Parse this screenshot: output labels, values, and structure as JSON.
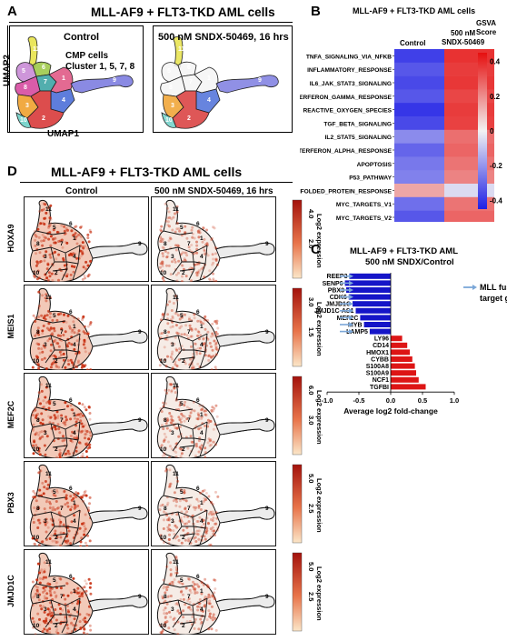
{
  "panel_a": {
    "letter": "A",
    "title": "MLL-AF9 + FLT3-TKD AML cells",
    "control_label": "Control",
    "treated_label": "500 nM SNDX-50469, 16 hrs",
    "cmp_label_1": "CMP cells",
    "cmp_label_2": "Cluster 1, 5, 7, 8",
    "ylabel": "UMAP2",
    "xlabel": "UMAP1"
  },
  "panel_b": {
    "letter": "B",
    "title": "MLL-AF9 + FLT3-TKD AML cells",
    "col1": "Control",
    "col2_line1": "500 nM",
    "col2_line2": "SNDX-50469",
    "scale_line1": "GSVA",
    "scale_line2": "Score"
  },
  "panel_c": {
    "letter": "C",
    "title_line1": "MLL-AF9 + FLT3-TKD AML",
    "title_line2": "500 nM SNDX/Control",
    "annotation_line1": "MLL fusion",
    "annotation_line2": "target gene"
  },
  "panel_d": {
    "letter": "D",
    "title": "MLL-AF9 + FLT3-TKD AML cells",
    "control_label": "Control",
    "treated_label": "500 nM SNDX-50469, 16 hrs",
    "colorbar_label": "Log2 expression",
    "rows": [
      {
        "gene": "HOXA9",
        "max": "4.0",
        "mid": "2.0"
      },
      {
        "gene": "MEIS1",
        "max": "3.0",
        "mid": "1.5"
      },
      {
        "gene": "MEF2C",
        "max": "6.0",
        "mid": "3.0"
      },
      {
        "gene": "PBX3",
        "max": "5.0",
        "mid": "2.5"
      },
      {
        "gene": "JMJD1C",
        "max": "5.0",
        "mid": "2.5"
      }
    ]
  },
  "chart_data": [
    {
      "type": "heatmap",
      "panel": "B",
      "title": "MLL-AF9 + FLT3-TKD AML cells",
      "columns": [
        "Control",
        "500 nM SNDX-50469"
      ],
      "rows": [
        "TNFA_SIGNALING_VIA_NFKB",
        "INFLAMMATORY_RESPONSE",
        "IL6_JAK_STAT3_SIGNALING",
        "INTERFERON_GAMMA_RESPONSE",
        "REACTIVE_OXYGEN_SPECIES",
        "TGF_BETA_SIGNALING",
        "IL2_STAT5_SIGNALING",
        "INTERFERON_ALPHA_RESPONSE",
        "APOPTOSIS",
        "P53_PATHWAY",
        "UNFOLDED_PROTEIN_RESPONSE",
        "MYC_TARGETS_V1",
        "MYC_TARGETS_V2"
      ],
      "values": [
        [
          -0.38,
          0.38
        ],
        [
          -0.33,
          0.36
        ],
        [
          -0.36,
          0.37
        ],
        [
          -0.33,
          0.34
        ],
        [
          -0.4,
          0.36
        ],
        [
          -0.36,
          0.35
        ],
        [
          -0.22,
          0.26
        ],
        [
          -0.3,
          0.28
        ],
        [
          -0.26,
          0.25
        ],
        [
          -0.24,
          0.22
        ],
        [
          0.15,
          -0.05
        ],
        [
          -0.28,
          0.25
        ],
        [
          -0.33,
          0.28
        ]
      ],
      "colorbar_ticks": [
        "0.4",
        "0.2",
        "0",
        "-0.2",
        "-0.4"
      ],
      "vmin": -0.45,
      "vmax": 0.45,
      "colors": {
        "low": "#1f1fe6",
        "mid": "#f2f2f2",
        "high": "#e60f0f"
      }
    },
    {
      "type": "bar",
      "orientation": "horizontal",
      "panel": "C",
      "title": "MLL-AF9 + FLT3-TKD AML 500 nM SNDX/Control",
      "xlabel": "Average log2 fold-change",
      "categories": [
        "REEP3",
        "SENP6",
        "PBX3",
        "CDK6",
        "JMJD1C",
        "JMJD1C-AS1",
        "MEF2C",
        "MYB",
        "LAMP5",
        "LY96",
        "CD14",
        "HMOX1",
        "CYBB",
        "S100A8",
        "S100A9",
        "NCF1",
        "TGFBI"
      ],
      "values": [
        -0.65,
        -0.72,
        -0.7,
        -0.66,
        -0.6,
        -0.55,
        -0.48,
        -0.42,
        -0.33,
        0.18,
        0.26,
        0.3,
        0.34,
        0.38,
        0.4,
        0.44,
        0.55
      ],
      "arrowed": [
        "REEP3",
        "SENP6",
        "PBX3",
        "CDK6",
        "JMJD1C",
        "JMJD1C-AS1",
        "MEF2C",
        "MYB",
        "LAMP5"
      ],
      "xticks": [
        "-1.0",
        "-0.5",
        "0.0",
        "0.5",
        "1.0"
      ],
      "xlim": [
        -1.0,
        1.0
      ],
      "colors": {
        "negative": "#1515c8",
        "positive": "#dd1515",
        "arrow": "#7ba7d8"
      }
    }
  ]
}
